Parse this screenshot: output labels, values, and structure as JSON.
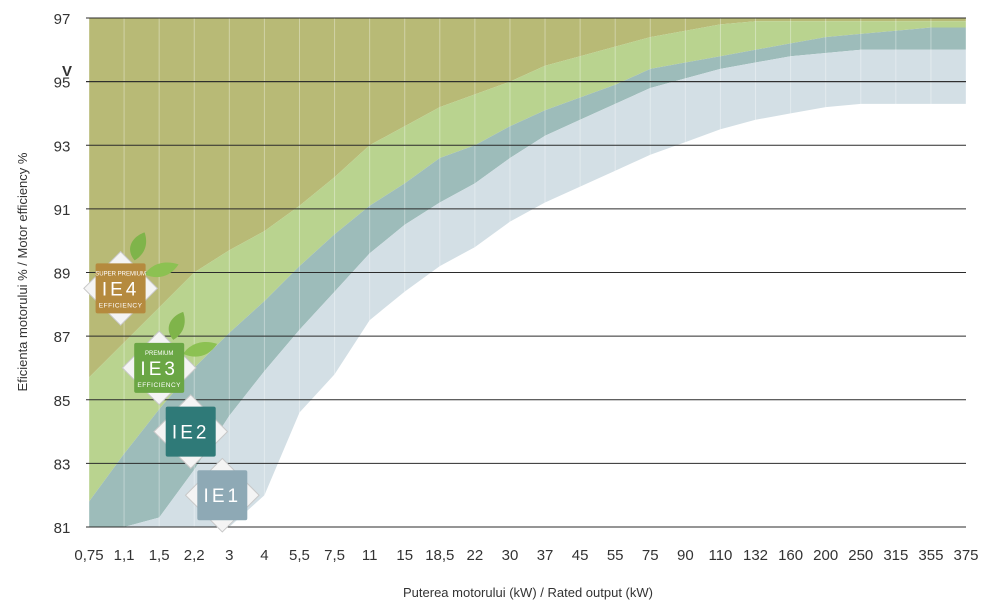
{
  "chart_data": {
    "type": "area",
    "ylabel": "Eficienta motorului % / Motor efficiency %",
    "xlabel": "Puterea motorului (kW) / Rated output (kW)",
    "categories": [
      "0,75",
      "1,1",
      "1,5",
      "2,2",
      "3",
      "4",
      "5,5",
      "7,5",
      "11",
      "15",
      "18,5",
      "22",
      "30",
      "37",
      "45",
      "55",
      "75",
      "90",
      "110",
      "132",
      "160",
      "200",
      "250",
      "315",
      "355",
      "375"
    ],
    "y_ticks": [
      81,
      83,
      85,
      87,
      89,
      91,
      93,
      95,
      97
    ],
    "ylim": [
      81,
      97
    ],
    "marker_label": "V",
    "marker_value": 95.0,
    "grid": "horizontal",
    "bands": [
      {
        "class": "IE4",
        "color": "#b8ba76",
        "lower": [
          85.7,
          86.8,
          87.9,
          89.0,
          89.7,
          90.3,
          91.1,
          92.0,
          93.0,
          93.6,
          94.2,
          94.6,
          95.0,
          95.5,
          95.8,
          96.1,
          96.4,
          96.6,
          96.8,
          96.9,
          96.9,
          96.9,
          96.9,
          96.9,
          96.9,
          96.9
        ],
        "upper": [
          97,
          97,
          97,
          97,
          97,
          97,
          97,
          97,
          97,
          97,
          97,
          97,
          97,
          97,
          97,
          97,
          97,
          97,
          97,
          97,
          97,
          97,
          97,
          97,
          97,
          97
        ]
      },
      {
        "class": "IE3",
        "color": "#b9d38f",
        "lower": [
          81.8,
          83.3,
          84.7,
          86.0,
          87.1,
          88.1,
          89.2,
          90.2,
          91.1,
          91.8,
          92.6,
          93.0,
          93.6,
          94.1,
          94.5,
          94.9,
          95.4,
          95.6,
          95.8,
          96.0,
          96.2,
          96.4,
          96.5,
          96.6,
          96.7,
          96.7
        ],
        "upper": [
          85.7,
          86.8,
          87.9,
          89.0,
          89.7,
          90.3,
          91.1,
          92.0,
          93.0,
          93.6,
          94.2,
          94.6,
          95.0,
          95.5,
          95.8,
          96.1,
          96.4,
          96.6,
          96.8,
          96.9,
          96.9,
          96.9,
          96.9,
          96.9,
          96.9,
          96.9
        ]
      },
      {
        "class": "IE2",
        "color": "#9dbcba",
        "lower": [
          81.0,
          81.0,
          81.3,
          82.8,
          84.5,
          85.9,
          87.2,
          88.4,
          89.6,
          90.5,
          91.2,
          91.8,
          92.6,
          93.3,
          93.8,
          94.3,
          94.8,
          95.1,
          95.4,
          95.6,
          95.8,
          95.9,
          96.0,
          96.0,
          96.0,
          96.0
        ],
        "upper": [
          81.8,
          83.3,
          84.7,
          86.0,
          87.1,
          88.1,
          89.2,
          90.2,
          91.1,
          91.8,
          92.6,
          93.0,
          93.6,
          94.1,
          94.5,
          94.9,
          95.4,
          95.6,
          95.8,
          96.0,
          96.2,
          96.4,
          96.5,
          96.6,
          96.7,
          96.7
        ]
      },
      {
        "class": "IE1",
        "color": "#d3dfe5",
        "lower": [
          81.0,
          81.0,
          81.0,
          81.0,
          81.0,
          82.0,
          84.6,
          85.8,
          87.5,
          88.4,
          89.2,
          89.8,
          90.6,
          91.2,
          91.7,
          92.2,
          92.7,
          93.1,
          93.5,
          93.8,
          94.0,
          94.2,
          94.3,
          94.3,
          94.3,
          94.3
        ],
        "upper": [
          81.0,
          81.0,
          81.3,
          82.8,
          84.5,
          85.9,
          87.2,
          88.4,
          89.6,
          90.5,
          91.2,
          91.8,
          92.6,
          93.3,
          93.8,
          94.3,
          94.8,
          95.1,
          95.4,
          95.6,
          95.8,
          95.9,
          96.0,
          96.0,
          96.0,
          96.0
        ]
      }
    ],
    "badges": [
      {
        "name": "ie4-badge",
        "top": "SUPER PREMIUM",
        "main": "IE4",
        "bottom": "EFFICIENCY",
        "cat": 0.9,
        "y": 88.5,
        "color": "#b58a3e",
        "leaf": true
      },
      {
        "name": "ie3-badge",
        "top": "PREMIUM",
        "main": "IE3",
        "bottom": "EFFICIENCY",
        "cat": 2.0,
        "y": 86.0,
        "color": "#6aa644",
        "leaf": true
      },
      {
        "name": "ie2-badge",
        "top": "",
        "main": "IE2",
        "bottom": "",
        "cat": 2.9,
        "y": 84.0,
        "color": "#2f7a78",
        "leaf": false
      },
      {
        "name": "ie1-badge",
        "top": "",
        "main": "IE1",
        "bottom": "",
        "cat": 3.8,
        "y": 82.0,
        "color": "#8ea9b5",
        "leaf": false
      }
    ]
  }
}
